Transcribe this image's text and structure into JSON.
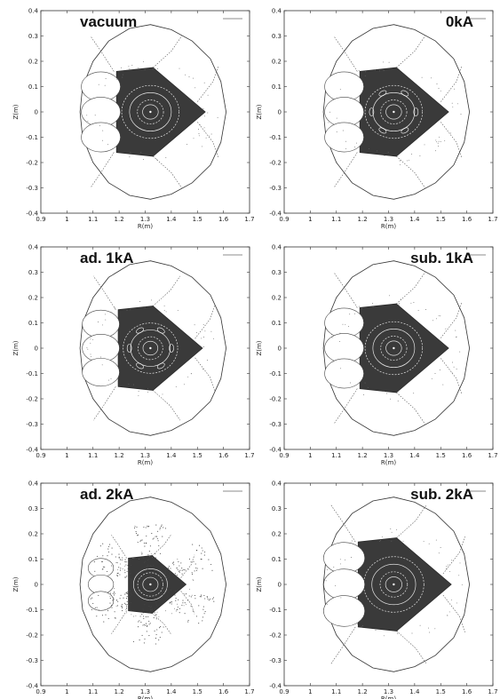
{
  "figure": {
    "panels": [
      {
        "title": "vacuum",
        "current_kA": 0,
        "model": "vacuum",
        "rows": 0,
        "col": 0
      },
      {
        "title": "0kA",
        "current_kA": 0,
        "model": "",
        "rows": 0,
        "col": 1
      },
      {
        "title": "ad. 1kA",
        "current_kA": 1,
        "model": "ad.",
        "rows": 1,
        "col": 0
      },
      {
        "title": "sub. 1kA",
        "current_kA": 1,
        "model": "sub.",
        "rows": 1,
        "col": 1
      },
      {
        "title": "ad. 2kA",
        "current_kA": 2,
        "model": "ad.",
        "rows": 2,
        "col": 0
      },
      {
        "title": "sub. 2kA",
        "current_kA": 2,
        "model": "sub.",
        "rows": 2,
        "col": 1
      }
    ]
  },
  "chart_data": {
    "type": "scatter",
    "description_of_marks": "Poincare plot of magnetic field-line puncture points inside a vessel outline",
    "xlabel": "R(m)",
    "ylabel": "Z(m)",
    "xlim": [
      0.9,
      1.7
    ],
    "ylim": [
      -0.4,
      0.4
    ],
    "xticks": [
      0.9,
      1,
      1.1,
      1.2,
      1.3,
      1.4,
      1.5,
      1.6,
      1.7
    ],
    "yticks": [
      0.4,
      0.3,
      0.2,
      0.1,
      0,
      -0.1,
      -0.2,
      -0.3,
      -0.4
    ],
    "xtick_labels": [
      "0.9",
      "1",
      "1.1",
      "1.2",
      "1.3",
      "1.4",
      "1.5",
      "1.6",
      "1.7"
    ],
    "ytick_labels": [
      "0.4",
      "0.3",
      "0.2",
      "0.1",
      "0",
      "-0.1",
      "-0.2",
      "-0.3",
      "-0.4"
    ],
    "grid": false,
    "legend": "top-right",
    "vessel_outline": [
      [
        1.32,
        0.345
      ],
      [
        1.4,
        0.325
      ],
      [
        1.48,
        0.28
      ],
      [
        1.55,
        0.21
      ],
      [
        1.59,
        0.12
      ],
      [
        1.61,
        0.0
      ],
      [
        1.59,
        -0.12
      ],
      [
        1.55,
        -0.21
      ],
      [
        1.48,
        -0.28
      ],
      [
        1.4,
        -0.325
      ],
      [
        1.32,
        -0.345
      ],
      [
        1.24,
        -0.33
      ],
      [
        1.16,
        -0.28
      ],
      [
        1.1,
        -0.2
      ],
      [
        1.06,
        -0.1
      ],
      [
        1.05,
        0.0
      ],
      [
        1.06,
        0.1
      ],
      [
        1.1,
        0.2
      ],
      [
        1.16,
        0.28
      ],
      [
        1.24,
        0.33
      ]
    ],
    "core_boundary_ref": [
      [
        1.19,
        0.16
      ],
      [
        1.33,
        0.175
      ],
      [
        1.53,
        0.0
      ],
      [
        1.33,
        -0.175
      ],
      [
        1.19,
        -0.16
      ],
      [
        1.19,
        0.0
      ]
    ],
    "magnetic_axis": {
      "R": 1.32,
      "Z": 0.0
    },
    "panels": [
      {
        "title": "vacuum",
        "core_scale": 1.0,
        "lobes": 3,
        "island_chain": false,
        "stochastic_tendrils": false
      },
      {
        "title": "0kA",
        "core_scale": 1.0,
        "lobes": 3,
        "island_chain": true,
        "stochastic_tendrils": false
      },
      {
        "title": "ad. 1kA",
        "core_scale": 0.95,
        "lobes": 3,
        "island_chain": true,
        "stochastic_tendrils": false
      },
      {
        "title": "sub. 1kA",
        "core_scale": 1.0,
        "lobes": 3,
        "island_chain": false,
        "stochastic_tendrils": false
      },
      {
        "title": "ad. 2kA",
        "core_scale": 0.65,
        "lobes": 3,
        "island_chain": false,
        "stochastic_tendrils": true
      },
      {
        "title": "sub. 2kA",
        "core_scale": 1.05,
        "lobes": 3,
        "island_chain": false,
        "stochastic_tendrils": false
      }
    ]
  }
}
